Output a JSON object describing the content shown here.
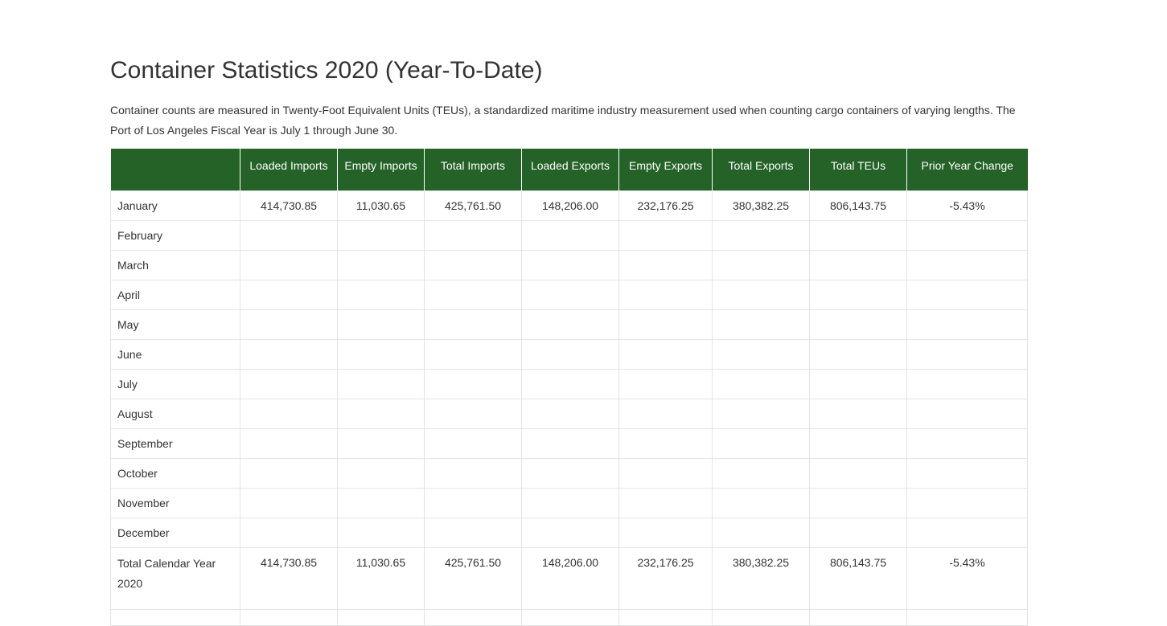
{
  "page": {
    "title": "Container Statistics 2020 (Year-To-Date)",
    "intro": "Container counts are measured in Twenty-Foot Equivalent Units (TEUs), a standardized maritime industry measurement used when counting cargo containers of varying lengths. The Port of Los Angeles Fiscal Year is July 1 through June 30."
  },
  "table": {
    "header_color": "#246227",
    "columns": [
      "",
      "Loaded Imports",
      "Empty Imports",
      "Total Imports",
      "Loaded Exports",
      "Empty Exports",
      "Total Exports",
      "Total TEUs",
      "Prior Year Change"
    ],
    "rows": [
      {
        "month": "January",
        "values": [
          "414,730.85",
          "11,030.65",
          "425,761.50",
          "148,206.00",
          "232,176.25",
          "380,382.25",
          "806,143.75",
          "-5.43%"
        ]
      },
      {
        "month": "February",
        "values": [
          "",
          "",
          "",
          "",
          "",
          "",
          "",
          ""
        ]
      },
      {
        "month": "March",
        "values": [
          "",
          "",
          "",
          "",
          "",
          "",
          "",
          ""
        ]
      },
      {
        "month": "April",
        "values": [
          "",
          "",
          "",
          "",
          "",
          "",
          "",
          ""
        ]
      },
      {
        "month": "May",
        "values": [
          "",
          "",
          "",
          "",
          "",
          "",
          "",
          ""
        ]
      },
      {
        "month": "June",
        "values": [
          "",
          "",
          "",
          "",
          "",
          "",
          "",
          ""
        ]
      },
      {
        "month": "July",
        "values": [
          "",
          "",
          "",
          "",
          "",
          "",
          "",
          ""
        ]
      },
      {
        "month": "August",
        "values": [
          "",
          "",
          "",
          "",
          "",
          "",
          "",
          ""
        ]
      },
      {
        "month": "September",
        "values": [
          "",
          "",
          "",
          "",
          "",
          "",
          "",
          ""
        ]
      },
      {
        "month": "October",
        "values": [
          "",
          "",
          "",
          "",
          "",
          "",
          "",
          ""
        ]
      },
      {
        "month": "November",
        "values": [
          "",
          "",
          "",
          "",
          "",
          "",
          "",
          ""
        ]
      },
      {
        "month": "December",
        "values": [
          "",
          "",
          "",
          "",
          "",
          "",
          "",
          ""
        ]
      }
    ],
    "total_row": {
      "label": "Total Calendar Year 2020",
      "values": [
        "414,730.85",
        "11,030.65",
        "425,761.50",
        "148,206.00",
        "232,176.25",
        "380,382.25",
        "806,143.75",
        "-5.43%"
      ]
    }
  }
}
